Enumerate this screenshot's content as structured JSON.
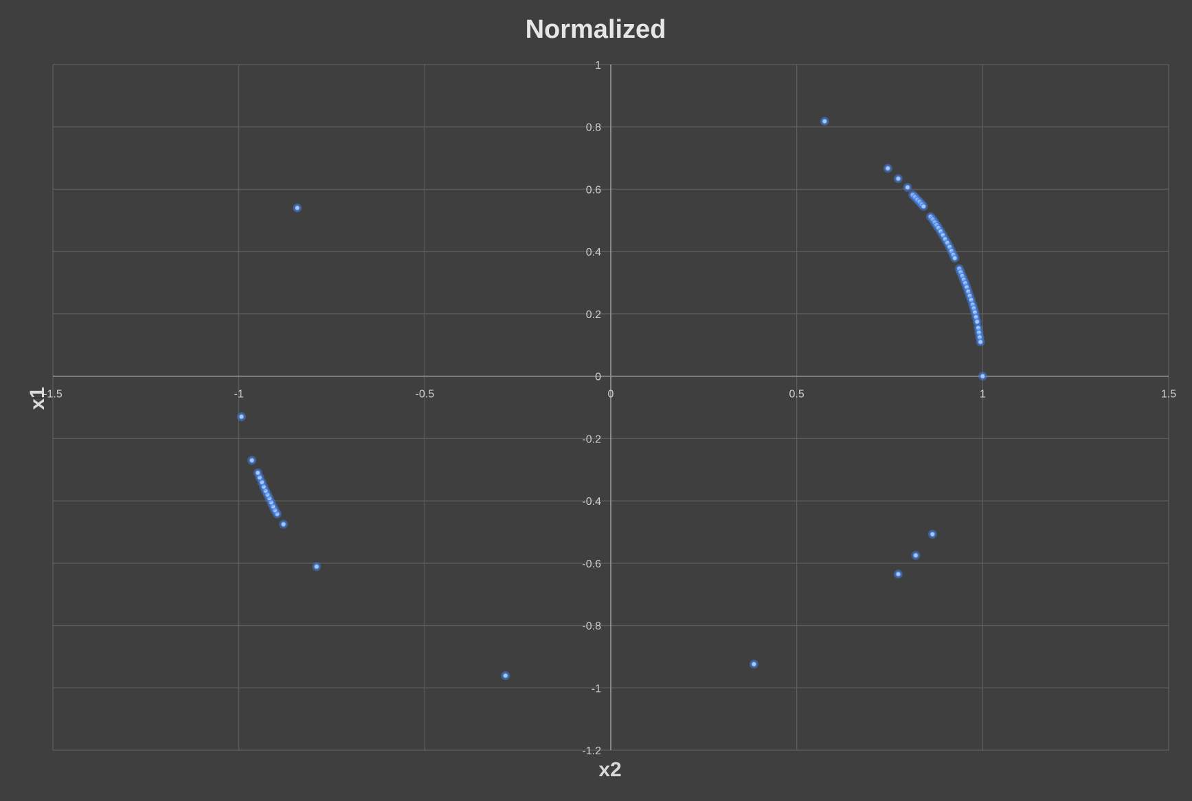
{
  "chart_data": {
    "type": "scatter",
    "title": "Normalized",
    "xlabel": "x2",
    "ylabel": "x1",
    "xlim": [
      -1.5,
      1.5
    ],
    "ylim": [
      -1.2,
      1
    ],
    "x_ticks": [
      -1.5,
      -1,
      -0.5,
      0,
      0.5,
      1,
      1.5
    ],
    "y_ticks": [
      -1.2,
      -1,
      -0.8,
      -0.6,
      -0.4,
      -0.2,
      0,
      0.2,
      0.4,
      0.6,
      0.8,
      1
    ],
    "grid": true,
    "legend": "none",
    "series": [
      {
        "color": "#4a86e8",
        "points": [
          [
            0.575,
            0.818
          ],
          [
            0.745,
            0.667
          ],
          [
            0.773,
            0.634
          ],
          [
            0.798,
            0.606
          ],
          [
            0.812,
            0.582
          ],
          [
            0.818,
            0.575
          ],
          [
            0.824,
            0.567
          ],
          [
            0.83,
            0.56
          ],
          [
            0.836,
            0.552
          ],
          [
            0.841,
            0.545
          ],
          [
            0.86,
            0.512
          ],
          [
            0.866,
            0.503
          ],
          [
            0.871,
            0.494
          ],
          [
            0.876,
            0.485
          ],
          [
            0.881,
            0.476
          ],
          [
            0.887,
            0.465
          ],
          [
            0.893,
            0.453
          ],
          [
            0.899,
            0.44
          ],
          [
            0.905,
            0.428
          ],
          [
            0.911,
            0.415
          ],
          [
            0.916,
            0.402
          ],
          [
            0.921,
            0.39
          ],
          [
            0.925,
            0.379
          ],
          [
            0.937,
            0.345
          ],
          [
            0.941,
            0.334
          ],
          [
            0.945,
            0.322
          ],
          [
            0.949,
            0.31
          ],
          [
            0.953,
            0.299
          ],
          [
            0.957,
            0.286
          ],
          [
            0.961,
            0.272
          ],
          [
            0.965,
            0.258
          ],
          [
            0.969,
            0.245
          ],
          [
            0.973,
            0.23
          ],
          [
            0.976,
            0.218
          ],
          [
            0.979,
            0.205
          ],
          [
            0.982,
            0.19
          ],
          [
            0.985,
            0.175
          ],
          [
            0.988,
            0.155
          ],
          [
            0.99,
            0.14
          ],
          [
            0.992,
            0.125
          ],
          [
            0.994,
            0.11
          ],
          [
            1.0,
            0.0
          ],
          [
            0.865,
            -0.507
          ],
          [
            0.82,
            -0.575
          ],
          [
            0.773,
            -0.635
          ],
          [
            0.385,
            -0.924
          ],
          [
            -0.283,
            -0.961
          ],
          [
            -0.791,
            -0.611
          ],
          [
            -0.88,
            -0.475
          ],
          [
            -0.897,
            -0.442
          ],
          [
            -0.903,
            -0.43
          ],
          [
            -0.908,
            -0.418
          ],
          [
            -0.913,
            -0.405
          ],
          [
            -0.918,
            -0.392
          ],
          [
            -0.923,
            -0.38
          ],
          [
            -0.928,
            -0.368
          ],
          [
            -0.933,
            -0.355
          ],
          [
            -0.938,
            -0.34
          ],
          [
            -0.944,
            -0.325
          ],
          [
            -0.949,
            -0.31
          ],
          [
            -0.965,
            -0.27
          ],
          [
            -0.993,
            -0.13
          ],
          [
            -0.843,
            0.54
          ]
        ]
      }
    ]
  }
}
